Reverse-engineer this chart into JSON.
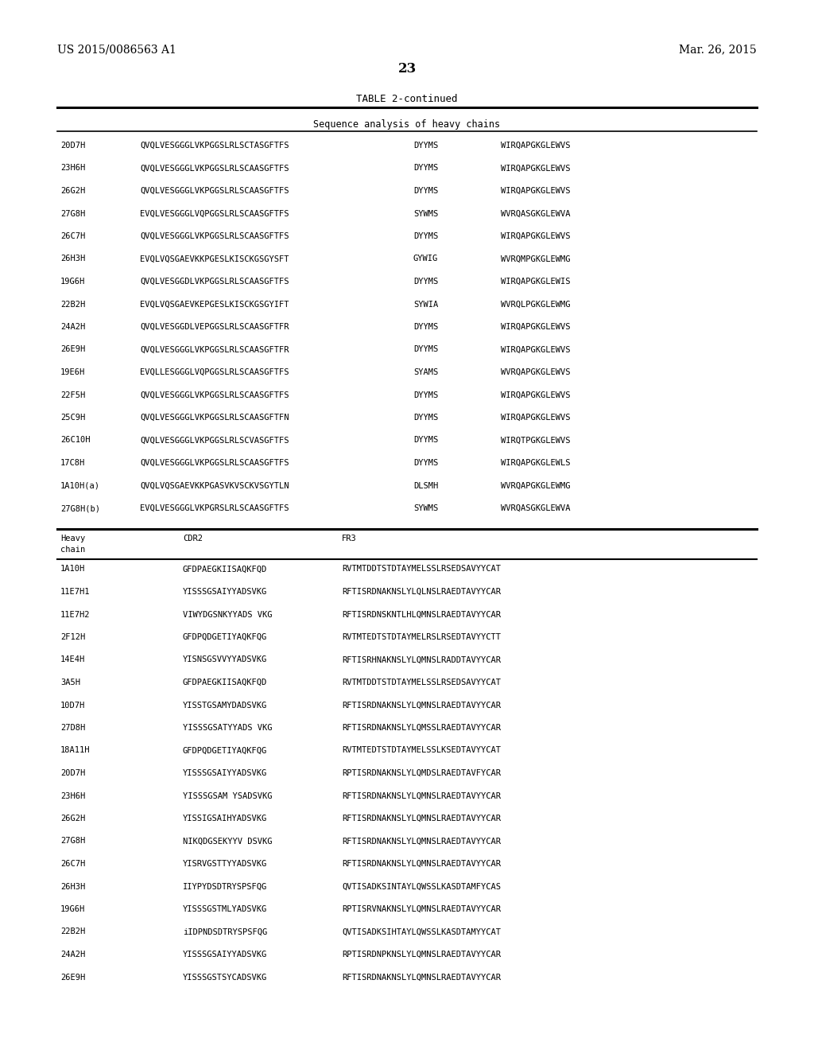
{
  "header_left": "US 2015/0086563 A1",
  "header_right": "Mar. 26, 2015",
  "page_number": "23",
  "table_title": "TABLE 2-continued",
  "section1_header": "Sequence analysis of heavy chains",
  "section1_rows": [
    [
      "20D7H",
      "QVQLVESGGGLVKPGGSLRLSCTASGFTFS",
      "DYYMS",
      "WIRQAPGKGLEWVS"
    ],
    [
      "23H6H",
      "QVQLVESGGGLVKPGGSLRLSCAASGFTFS",
      "DYYMS",
      "WIRQAPGKGLEWVS"
    ],
    [
      "26G2H",
      "QVQLVESGGGLVKPGGSLRLSCAASGFTFS",
      "DYYMS",
      "WIRQAPGKGLEWVS"
    ],
    [
      "27G8H",
      "EVQLVESGGGLVQPGGSLRLSCAASGFTFS",
      "SYWMS",
      "WVRQASGKGLEWVA"
    ],
    [
      "26C7H",
      "QVQLVESGGGLVKPGGSLRLSCAASGFTFS",
      "DYYMS",
      "WIRQAPGKGLEWVS"
    ],
    [
      "26H3H",
      "EVQLVQSGAEVKKPGESLKISCKGSGYSFT",
      "GYWIG",
      "WVRQMPGKGLEWMG"
    ],
    [
      "19G6H",
      "QVQLVESGGDLVKPGGSLRLSCAASGFTFS",
      "DYYMS",
      "WIRQAPGKGLEWIS"
    ],
    [
      "22B2H",
      "EVQLVQSGAEVKEPGESLKISCKGSGYIFT",
      "SYWIA",
      "WVRQLPGKGLEWMG"
    ],
    [
      "24A2H",
      "QVQLVESGGDLVEPGGSLRLSCAASGFTFR",
      "DYYMS",
      "WIRQAPGKGLEWVS"
    ],
    [
      "26E9H",
      "QVQLVESGGGLVKPGGSLRLSCAASGFTFR",
      "DYYMS",
      "WIRQAPGKGLEWVS"
    ],
    [
      "19E6H",
      "EVQLLESGGGLVQPGGSLRLSCAASGFTFS",
      "SYAMS",
      "WVRQAPGKGLEWVS"
    ],
    [
      "22F5H",
      "QVQLVESGGGLVKPGGSLRLSCAASGFTFS",
      "DYYMS",
      "WIRQAPGKGLEWVS"
    ],
    [
      "25C9H",
      "QVQLVESGGGLVKPGGSLRLSCAASGFTFN",
      "DYYMS",
      "WIRQAPGKGLEWVS"
    ],
    [
      "26C10H",
      "QVQLVESGGGLVKPGGSLRLSCVASGFTFS",
      "DYYMS",
      "WIRQTPGKGLEWVS"
    ],
    [
      "17C8H",
      "QVQLVESGGGLVKPGGSLRLSCAASGFTFS",
      "DYYMS",
      "WIRQAPGKGLEWLS"
    ],
    [
      "1A10H(a)",
      "QVQLVQSGAEVKKPGASVKVSCKVSGYTLN",
      "DLSMH",
      "WVRQAPGKGLEWMG"
    ],
    [
      "27G8H(b)",
      "EVQLVESGGGLVKPGRSLRLSCAASGFTFS",
      "SYWMS",
      "WVRQASGKGLEWVA"
    ]
  ],
  "section2_rows": [
    [
      "1A10H",
      "GFDPAEGKIISAQKFQD",
      "RVTMTDDTSTDTAYMELSSLRSEDSAVYYCAT"
    ],
    [
      "11E7H1",
      "YISSSGSAIYYADSVKG",
      "RFTISRDNAKNSLYLQLNSLRAEDTAVYYCAR"
    ],
    [
      "11E7H2",
      "VIWYDGSNKYYADS VKG",
      "RFTISRDNSKNTLHLQMNSLRAEDTAVYYCAR"
    ],
    [
      "2F12H",
      "GFDPQDGETIYAQKFQG",
      "RVTMTEDTSTDTAYMELRSLRSEDTAVYYCTT"
    ],
    [
      "14E4H",
      "YISNSGSVVYYADSVKG",
      "RFTISRHNAKNSLYLQMNSLRADDTAVYYCAR"
    ],
    [
      "3A5H",
      "GFDPAEGKIISAQKFQD",
      "RVTMTDDTSTDTAYMELSSLRSEDSAVYYCAT"
    ],
    [
      "10D7H",
      "YISSTGSAMYDADSVKG",
      "RFTISRDNAKNSLYLQMNSLRAEDTAVYYCAR"
    ],
    [
      "27D8H",
      "YISSSGSATYYADS VKG",
      "RFTISRDNAKNSLYLQMSSLRAEDTAVYYCAR"
    ],
    [
      "18A11H",
      "GFDPQDGETIYAQKFQG",
      "RVTMTEDTSTDTAYMELSSLKSEDTAVYYCAT"
    ],
    [
      "20D7H",
      "YISSSGSAIYYADSVKG",
      "RPTISRDNAKNSLYLQMDSLRAEDTAVFYCAR"
    ],
    [
      "23H6H",
      "YISSSGSAM YSADSVKG",
      "RFTISRDNAKNSLYLQMNSLRAEDTAVYYCAR"
    ],
    [
      "26G2H",
      "YISSIGSAIHYADSVKG",
      "RFTISRDNAKNSLYLQMNSLRAEDTAVYYCAR"
    ],
    [
      "27G8H",
      "NIKQDGSEKYYV DSVKG",
      "RFTISRDNAKNSLYLQMNSLRAEDTAVYYCAR"
    ],
    [
      "26C7H",
      "YISRVGSTTYYADSVKG",
      "RFTISRDNAKNSLYLQMNSLRAEDTAVYYCAR"
    ],
    [
      "26H3H",
      "IIYPYDSDTRYSPSFQG",
      "QVTISADKSINTAYLQWSSLKASDTAMFYCAS"
    ],
    [
      "19G6H",
      "YISSSGSTMLYADSVKG",
      "RPTISRVNAKNSLYLQMNSLRAEDTAVYYCAR"
    ],
    [
      "22B2H",
      "iIDPNDSDTRYSPSFQG",
      "QVTISADKSIHTAYLQWSSLKASDTAMYYCAT"
    ],
    [
      "24A2H",
      "YISSSGSAIYYADSVKG",
      "RPTISRDNPKNSLYLQMNSLRAEDTAVYYCAR"
    ],
    [
      "26E9H",
      "YISSSGSTSYCADSVKG",
      "RFTISRDNAKNSLYLQMNSLRAEDTAVYYCAR"
    ]
  ],
  "background_color": "#ffffff"
}
